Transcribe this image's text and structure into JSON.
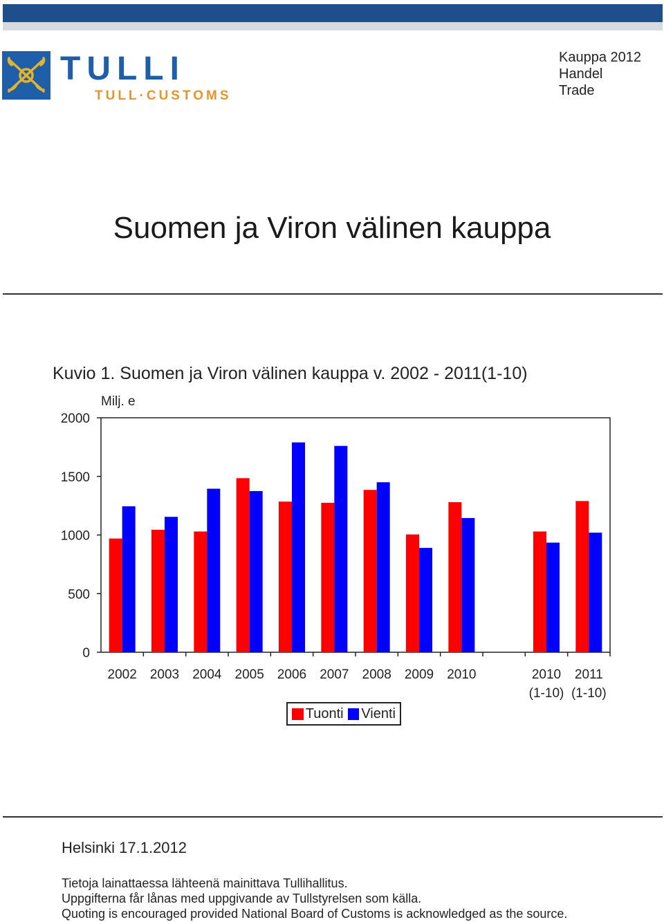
{
  "header": {
    "logo": {
      "name": "TULLI",
      "subname": "TULL·CUSTOMS",
      "emblem": "customs-emblem-icon",
      "color": "#1f5ea8",
      "accent": "#e5942b"
    },
    "right_lines": [
      "Kauppa 2012",
      "Handel",
      "Trade"
    ]
  },
  "page": {
    "title": "Suomen ja Viron välinen kauppa",
    "place_date": "Helsinki 17.1.2012",
    "footnotes": [
      "Tietoja lainattaessa lähteenä mainittava Tullihallitus.",
      "Uppgifterna får lånas med uppgivande av Tullstyrelsen som källa.",
      "Quoting is encouraged provided National Board of Customs is acknowledged as the source."
    ]
  },
  "chart_data": {
    "type": "bar",
    "title": "Kuvio 1. Suomen ja Viron välinen kauppa v. 2002 - 2011(1-10)",
    "ylabel": "Milj. e",
    "xlabel": "",
    "ylim": [
      0,
      2000
    ],
    "yticks": [
      0,
      500,
      1000,
      1500,
      2000
    ],
    "grid": false,
    "legend_position": "bottom-center",
    "categories": [
      [
        "2002"
      ],
      [
        "2003"
      ],
      [
        "2004"
      ],
      [
        "2005"
      ],
      [
        "2006"
      ],
      [
        "2007"
      ],
      [
        "2008"
      ],
      [
        "2009"
      ],
      [
        "2010"
      ],
      [],
      [
        "2010",
        "(1-10)"
      ],
      [
        "2011",
        "(1-10)"
      ]
    ],
    "series": [
      {
        "name": "Tuonti",
        "color": "#ff0000",
        "values": [
          970,
          1045,
          1030,
          1485,
          1285,
          1275,
          1385,
          1005,
          1280,
          null,
          1030,
          1290
        ]
      },
      {
        "name": "Vienti",
        "color": "#0000ff",
        "values": [
          1245,
          1155,
          1395,
          1375,
          1790,
          1760,
          1450,
          890,
          1145,
          null,
          935,
          1020
        ]
      }
    ]
  }
}
